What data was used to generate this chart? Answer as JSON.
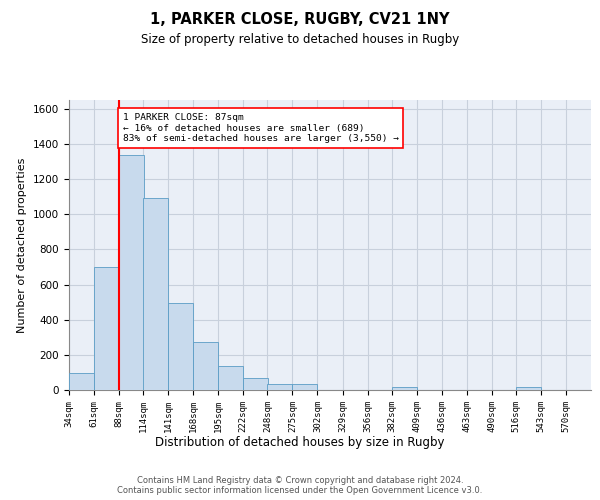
{
  "title_line1": "1, PARKER CLOSE, RUGBY, CV21 1NY",
  "title_line2": "Size of property relative to detached houses in Rugby",
  "xlabel": "Distribution of detached houses by size in Rugby",
  "ylabel": "Number of detached properties",
  "bar_color": "#c8daed",
  "bar_edge_color": "#5a9cc5",
  "grid_color": "#c8d0dc",
  "background_color": "#eaeff7",
  "property_line_color": "red",
  "annotation_text": "1 PARKER CLOSE: 87sqm\n← 16% of detached houses are smaller (689)\n83% of semi-detached houses are larger (3,550) →",
  "bins": [
    34,
    61,
    88,
    114,
    141,
    168,
    195,
    222,
    248,
    275,
    302,
    329,
    356,
    382,
    409,
    436,
    463,
    490,
    516,
    543,
    570
  ],
  "counts": [
    95,
    700,
    1335,
    1095,
    495,
    275,
    135,
    70,
    35,
    35,
    0,
    0,
    0,
    15,
    0,
    0,
    0,
    0,
    15,
    0,
    0
  ],
  "ylim": [
    0,
    1650
  ],
  "yticks": [
    0,
    200,
    400,
    600,
    800,
    1000,
    1200,
    1400,
    1600
  ],
  "footer_text": "Contains HM Land Registry data © Crown copyright and database right 2024.\nContains public sector information licensed under the Open Government Licence v3.0."
}
